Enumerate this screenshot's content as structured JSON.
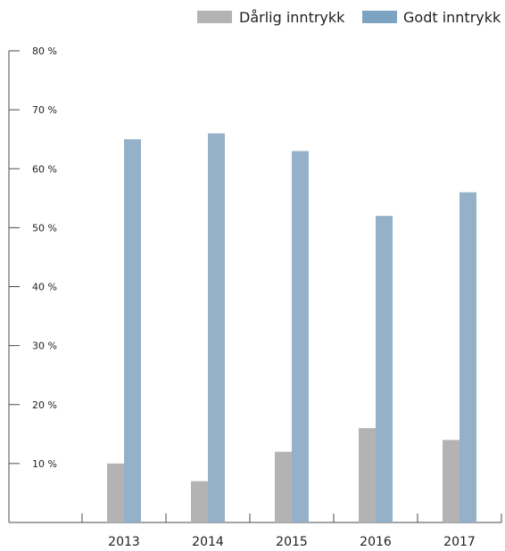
{
  "chart_data": {
    "type": "bar",
    "title": "",
    "xlabel": "",
    "ylabel": "",
    "categories": [
      "2013",
      "2014",
      "2015",
      "2016",
      "2017"
    ],
    "series": [
      {
        "name": "Dårlig inntrykk",
        "values": [
          10,
          7,
          12,
          16,
          14
        ],
        "color": "#b3b3b3"
      },
      {
        "name": "Godt inntrykk",
        "values": [
          65,
          66,
          63,
          52,
          56
        ],
        "color": "#95b1c9"
      }
    ],
    "ylim": [
      0,
      80
    ],
    "yticks": [
      0,
      10,
      20,
      30,
      40,
      50,
      60,
      70,
      80
    ],
    "ytick_labels": [
      "",
      "10 %",
      "20 %",
      "30 %",
      "40 %",
      "50 %",
      "60 %",
      "70 %",
      "80 %"
    ],
    "legend": {
      "position": "top-right"
    },
    "grid": false
  },
  "colors": {
    "axis": "#4a4a4a",
    "text": "#222222",
    "background": "#ffffff",
    "legend_godt_swatch": "#7da3c3"
  }
}
